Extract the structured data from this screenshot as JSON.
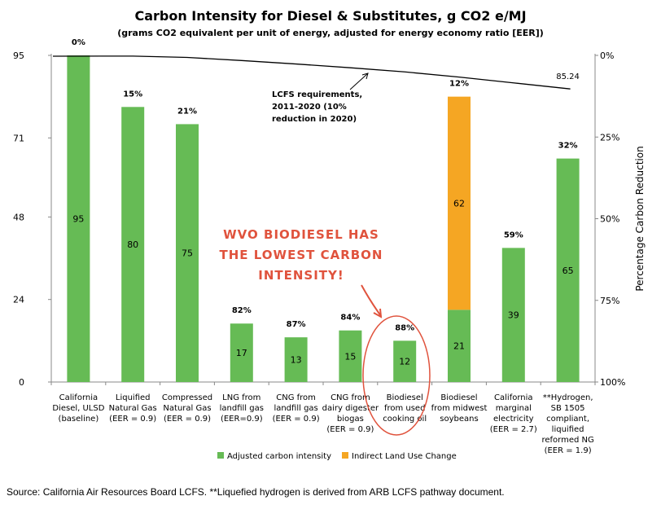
{
  "chart_data": {
    "type": "bar",
    "title": "Carbon Intensity for Diesel & Substitutes, g CO2 e/MJ",
    "subtitle": "(grams CO2 equivalent per unit of energy, adjusted for energy economy ratio [EER])",
    "categories": [
      [
        "California",
        "Diesel, ULSD",
        "(baseline)"
      ],
      [
        "Liquified",
        "Natural Gas",
        "(EER = 0.9)"
      ],
      [
        "Compressed",
        "Natural Gas",
        "(EER = 0.9)"
      ],
      [
        "LNG from",
        "landfill gas",
        "(EER=0.9)"
      ],
      [
        "CNG from",
        "landfill gas",
        "(EER = 0.9)"
      ],
      [
        "CNG from",
        "dairy digester",
        "biogas",
        "(EER = 0.9)"
      ],
      [
        "Biodiesel",
        "from used",
        "cooking oil"
      ],
      [
        "Biodiesel",
        "from midwest",
        "soybeans"
      ],
      [
        "California",
        "marginal",
        "electricity",
        "(EER = 2.7)"
      ],
      [
        "**Hydrogen,",
        "SB 1505",
        "compliant,",
        "liquified",
        "reformed NG",
        "(EER = 1.9)"
      ]
    ],
    "series": [
      {
        "name": "Adjusted carbon intensity",
        "color": "#66bb55",
        "values": [
          95,
          80,
          75,
          17,
          13,
          15,
          12,
          21,
          39,
          65
        ]
      },
      {
        "name": "Indirect Land Use Change",
        "color": "#f5a623",
        "values": [
          0,
          0,
          0,
          0,
          0,
          0,
          0,
          62,
          0,
          0
        ]
      }
    ],
    "value_labels": [
      "95",
      "80",
      "75",
      "17",
      "13",
      "15",
      "12",
      "21",
      "39",
      "65"
    ],
    "ilu_labels": [
      "",
      "",
      "",
      "",
      "",
      "",
      "",
      "62",
      "",
      ""
    ],
    "reduction_labels": [
      "0%",
      "15%",
      "21%",
      "82%",
      "87%",
      "84%",
      "88%",
      "12%",
      "59%",
      "32%"
    ],
    "y_left": {
      "ticks": [
        0,
        24,
        48,
        71,
        95
      ],
      "ylim": [
        0,
        95
      ]
    },
    "y_right": {
      "label": "Percentage Carbon Reduction",
      "ticks": [
        "0%",
        "25%",
        "50%",
        "75%",
        "100%"
      ]
    },
    "lcfs_line": {
      "values": [
        95,
        94.8,
        94.4,
        93.5,
        92.5,
        91.4,
        90.2,
        88.7,
        87.0,
        85.24
      ],
      "end_label": "85.24",
      "annotation": [
        "LCFS requirements,",
        "2011-2020 (10%",
        "reduction in 2020)"
      ]
    },
    "callout": [
      "WVO BIODIESEL HAS",
      "THE LOWEST CARBON",
      "INTENSITY!"
    ],
    "callout_color": "#e0533d",
    "legend": [
      "Adjusted carbon intensity",
      "Indirect Land Use Change"
    ]
  },
  "source": "Source: California Air Resources Board LCFS. **Liquefied hydrogen is derived from ARB LCFS pathway document."
}
